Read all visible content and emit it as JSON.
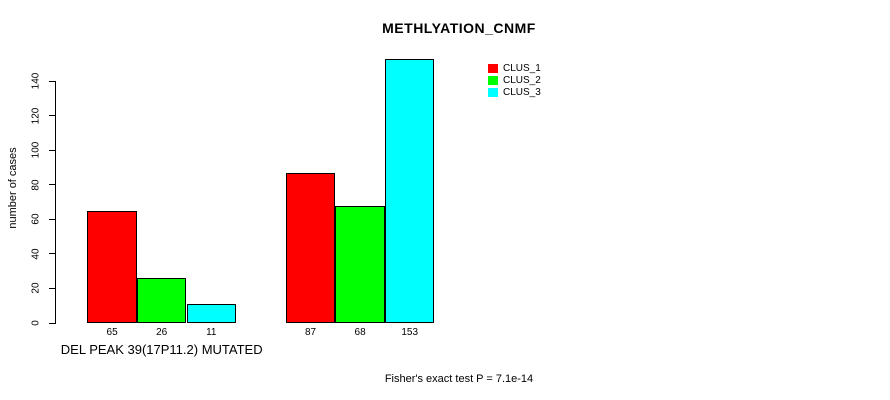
{
  "chart_data": {
    "type": "bar",
    "title": "METHLYATION_CNMF",
    "ylabel": "number of cases",
    "xlabel": "",
    "ylim": [
      0,
      155
    ],
    "yticks": [
      0,
      20,
      40,
      60,
      80,
      100,
      120,
      140
    ],
    "grid": false,
    "legend_position": "top-right",
    "bar_border_color": "#000000",
    "categories": [
      "DEL PEAK 39(17P11.2) MUTATED",
      ""
    ],
    "series": [
      {
        "name": "CLUS_1",
        "color": "#ff0000",
        "values": [
          65,
          87
        ]
      },
      {
        "name": "CLUS_2",
        "color": "#00ff00",
        "values": [
          26,
          68
        ]
      },
      {
        "name": "CLUS_3",
        "color": "#00ffff",
        "values": [
          11,
          153
        ]
      }
    ],
    "bar_value_labels": [
      [
        65,
        26,
        11
      ],
      [
        87,
        68,
        153
      ]
    ],
    "legend": [
      {
        "label": "CLUS_1",
        "color": "#ff0000"
      },
      {
        "label": "CLUS_2",
        "color": "#00ff00"
      },
      {
        "label": "CLUS_3",
        "color": "#00ffff"
      }
    ],
    "footnote": "Fisher's exact test P = 7.1e-14"
  }
}
